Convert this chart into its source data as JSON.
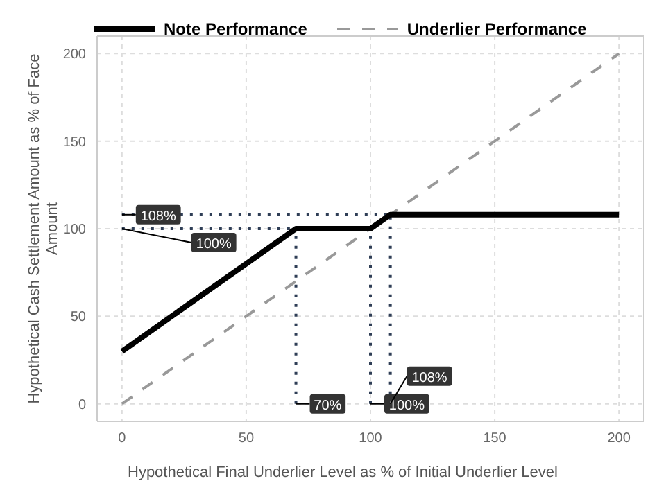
{
  "chart_data": {
    "type": "line",
    "xlabel": "Hypothetical Final Underlier Level as % of Initial Underlier Level",
    "ylabel": "Hypothetical Cash Settlement Amount as % of Face Amount",
    "xlim": [
      -10,
      210
    ],
    "ylim": [
      -10,
      210
    ],
    "xticks": [
      0,
      50,
      100,
      150,
      200
    ],
    "yticks": [
      0,
      50,
      100,
      150,
      200
    ],
    "grid": true,
    "legend": "top left",
    "marker": "none",
    "series": [
      {
        "name": "Note Performance",
        "color": "#000000",
        "line_style": "solid",
        "x": [
          0,
          70,
          100,
          108,
          200
        ],
        "values": [
          30,
          100,
          100,
          108,
          108
        ]
      },
      {
        "name": "Underlier Performance",
        "color": "#999999",
        "line_style": "dashed",
        "x": [
          0,
          200
        ],
        "values": [
          0,
          200
        ]
      }
    ],
    "ref_lines": [
      {
        "axis": "y",
        "value": 108,
        "line_style": "dotted",
        "color": "#2f3e56"
      },
      {
        "axis": "y",
        "value": 100,
        "line_style": "dotted",
        "color": "#2f3e56"
      },
      {
        "axis": "x",
        "value": 70,
        "line_style": "dotted",
        "color": "#2f3e56"
      },
      {
        "axis": "x",
        "value": 100,
        "line_style": "dotted",
        "color": "#2f3e56"
      },
      {
        "axis": "x",
        "value": 108,
        "line_style": "dotted",
        "color": "#2f3e56"
      }
    ],
    "annotations": [
      {
        "text": "108%",
        "x": 0,
        "y": 108
      },
      {
        "text": "100%",
        "x": 0,
        "y": 100
      },
      {
        "text": "70%",
        "x": 70,
        "y": 0
      },
      {
        "text": "100%",
        "x": 100,
        "y": 0
      },
      {
        "text": "108%",
        "x": 108,
        "y": 0
      }
    ]
  }
}
